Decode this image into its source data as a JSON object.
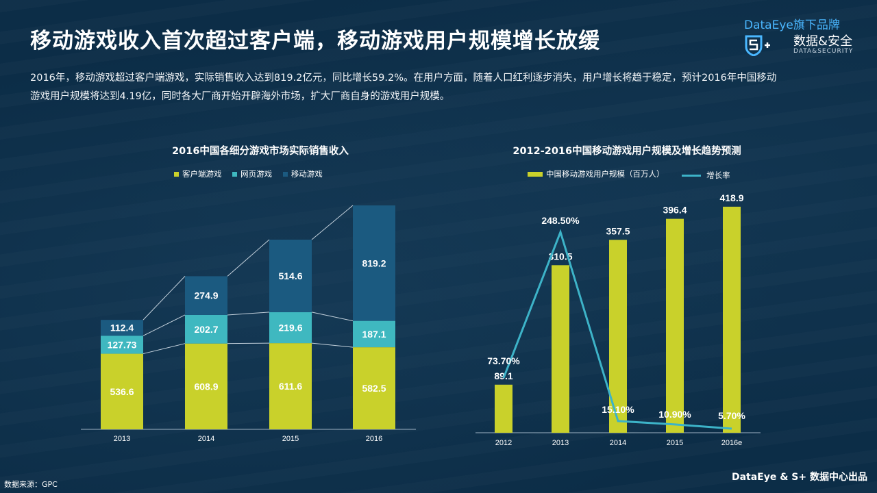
{
  "header": {
    "title": "移动游戏收入首次超过客户端，移动游戏用户规模增长放缓",
    "description": "2016年，移动游戏超过客户端游戏，实际销售收入达到819.2亿元，同比增长59.2%。在用户方面，随着人口红利逐步消失，用户增长将趋于稳定，预计2016年中国移动游戏用户规模将达到4.19亿，同时各大厂商开始开辟海外市场，扩大厂商自身的游戏用户规模。"
  },
  "logo": {
    "brand_line1": "DataEye旗下品牌",
    "brand_line2": "数据&安全",
    "brand_line3": "DATA&SECURITY",
    "icon": "s-plus-shield-icon"
  },
  "footer": {
    "source": "数据来源：GPC",
    "credit": "DataEye & S+ 数据中心出品"
  },
  "colors": {
    "background": "#0c2d47",
    "client_game": "#c9d12b",
    "web_game": "#3fb8c0",
    "mobile_game": "#1b5a80",
    "growth_line": "#3db3c8"
  },
  "chart_data": [
    {
      "type": "bar",
      "stacked": true,
      "title": "2016中国各细分游戏市场实际销售收入",
      "categories": [
        "2013",
        "2014",
        "2015",
        "2016"
      ],
      "series": [
        {
          "name": "客户端游戏",
          "values": [
            536.6,
            608.9,
            611.6,
            582.5
          ],
          "labels": [
            "536.6",
            "608.9",
            "611.6",
            "582.5"
          ]
        },
        {
          "name": "网页游戏",
          "values": [
            127.73,
            202.7,
            219.6,
            187.1
          ],
          "labels": [
            "127.73",
            "202.7",
            "219.6",
            "187.1"
          ]
        },
        {
          "name": "移动游戏",
          "values": [
            112.4,
            274.9,
            514.6,
            819.2
          ],
          "labels": [
            "112.4",
            "274.9",
            "514.6",
            "819.2"
          ]
        }
      ],
      "legend_position": "top",
      "ylim": [
        0,
        1600
      ],
      "grid": false
    },
    {
      "type": "bar",
      "title": "2012-2016中国移动游戏用户规模及增长趋势预测",
      "categories": [
        "2012",
        "2013",
        "2014",
        "2015",
        "2016e"
      ],
      "series": [
        {
          "name": "中国移动游戏用户规模（百万人）",
          "type": "bar",
          "values": [
            89.1,
            310.5,
            357.5,
            396.4,
            418.9
          ],
          "labels": [
            "89.1",
            "310.5",
            "357.5",
            "396.4",
            "418.9"
          ]
        },
        {
          "name": "增长率",
          "type": "line",
          "values": [
            73.7,
            248.5,
            15.1,
            10.9,
            5.7
          ],
          "labels": [
            "73.70%",
            "248.50%",
            "15.10%",
            "10.90%",
            "5.70%"
          ]
        }
      ],
      "legend_position": "top",
      "ylim": [
        0,
        420
      ],
      "y2lim": [
        0,
        248.5
      ],
      "grid": false
    }
  ]
}
